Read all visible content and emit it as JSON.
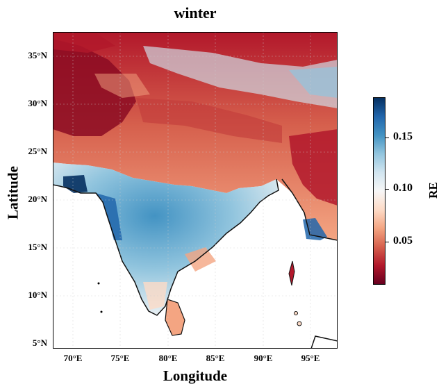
{
  "title": "winter",
  "xlabel": "Longitude",
  "ylabel": "Latitude",
  "x_ticks": [
    "70°E",
    "75°E",
    "80°E",
    "85°E",
    "90°E",
    "95°E"
  ],
  "y_ticks": [
    "35°N",
    "30°N",
    "25°N",
    "20°N",
    "15°N",
    "10°N",
    "5°N"
  ],
  "colorbar": {
    "label": "RE",
    "ticks": [
      "0.15",
      "0.10",
      "0.05"
    ],
    "range": [
      0.01,
      0.185
    ],
    "colormap": [
      "#67001f",
      "#b2182b",
      "#d6604d",
      "#f4a582",
      "#fddbc7",
      "#f7f7f7",
      "#d1e5f0",
      "#92c5de",
      "#4393c3",
      "#2166ac",
      "#053061"
    ]
  },
  "map": {
    "extent_lon": [
      68,
      98
    ],
    "extent_lat": [
      4.5,
      37.5
    ],
    "land_color": "#f3b69a",
    "ocean_color": "#ffffff"
  }
}
